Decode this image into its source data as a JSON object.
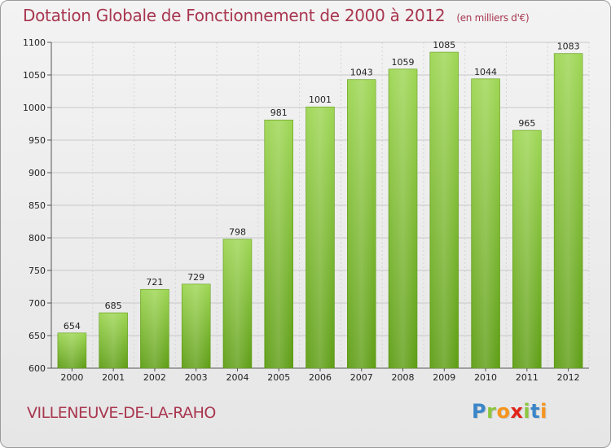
{
  "title": "Dotation Globale de Fonctionnement de 2000 à 2012",
  "subtitle": "(en milliers d'€)",
  "commune": "VILLENEUVE-DE-LA-RAHO",
  "logo": {
    "letters": [
      "P",
      "r",
      "o",
      "x",
      "i",
      "t",
      "i"
    ],
    "colors": [
      "#3a86c8",
      "#8dc63f",
      "#f7941d",
      "#e2231a",
      "#8dc63f",
      "#3a86c8",
      "#f7941d"
    ]
  },
  "chart_data": {
    "type": "bar",
    "title": "Dotation Globale de Fonctionnement de 2000 à 2012",
    "subtitle": "(en milliers d'€)",
    "categories": [
      "2000",
      "2001",
      "2002",
      "2003",
      "2004",
      "2005",
      "2006",
      "2007",
      "2008",
      "2009",
      "2010",
      "2011",
      "2012"
    ],
    "values": [
      654,
      685,
      721,
      729,
      798,
      981,
      1001,
      1043,
      1059,
      1085,
      1044,
      965,
      1083
    ],
    "ylim": [
      600,
      1100
    ],
    "yticks": [
      600,
      650,
      700,
      750,
      800,
      850,
      900,
      950,
      1000,
      1050,
      1100
    ],
    "grid": true,
    "bar_color": "#7fbf2e",
    "data_labels": true
  }
}
